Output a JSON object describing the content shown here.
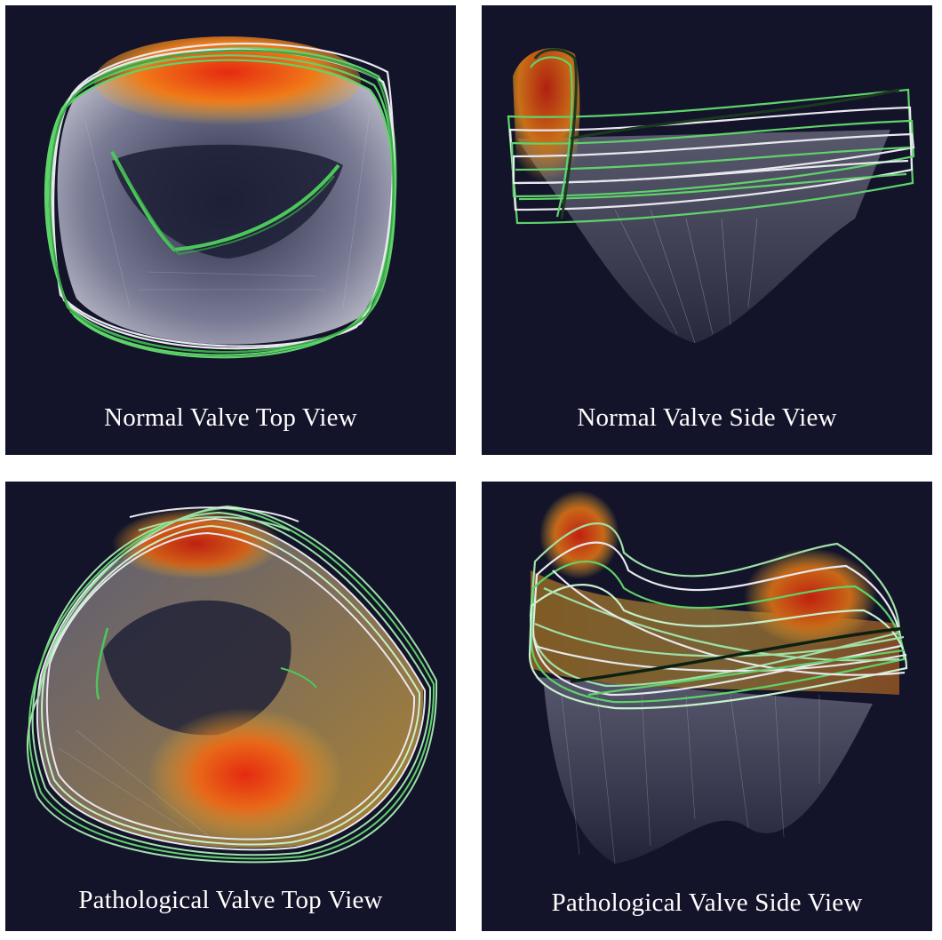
{
  "panels": [
    {
      "caption": "Normal Valve Top View"
    },
    {
      "caption": "Normal Valve Side View"
    },
    {
      "caption": "Pathological Valve Top View"
    },
    {
      "caption": "Pathological Valve Side View"
    }
  ],
  "colors": {
    "background": "#13132a",
    "annulus_green": "#5fd36a",
    "annulus_white": "#e8e8ee",
    "stress_high": "#e62a10",
    "stress_mid": "#f0a020",
    "leaflet_mesh": "#c8c8d8"
  }
}
